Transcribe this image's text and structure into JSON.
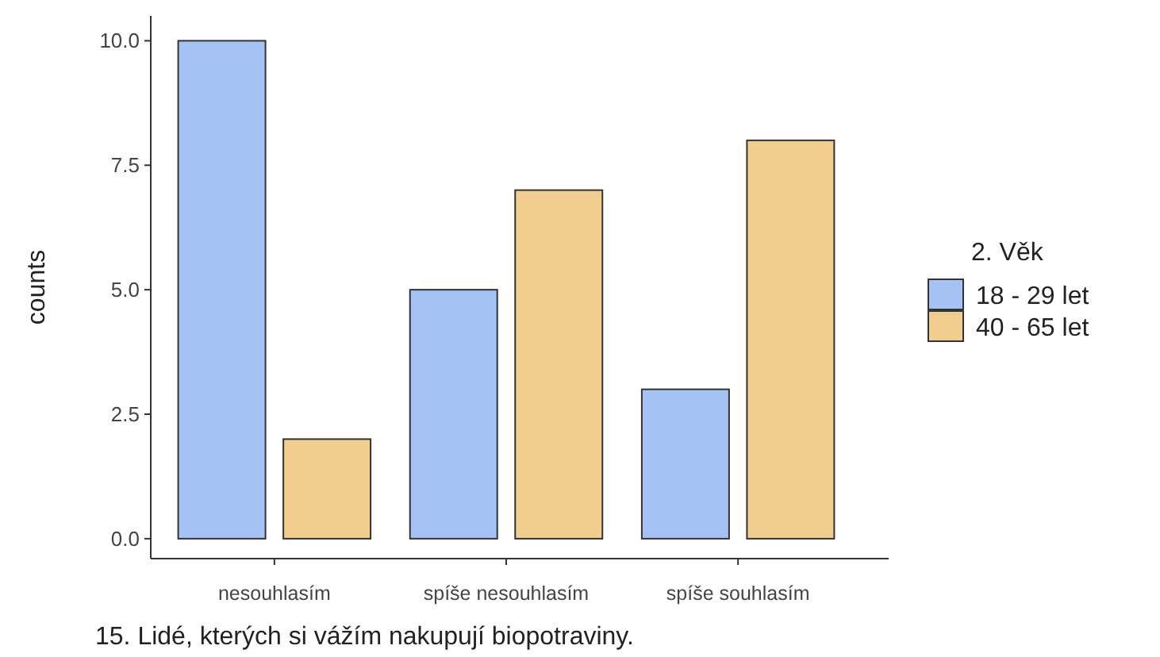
{
  "chart_data": {
    "type": "bar",
    "xlabel": "15.  Lidé, kterých si vážím nakupují biopotraviny.",
    "ylabel": "counts",
    "legend_title": "2. Věk",
    "categories": [
      "nesouhlasím",
      "spíše nesouhlasím",
      "spíše souhlasím"
    ],
    "series": [
      {
        "name": "18 - 29 let",
        "color": "#a4c2f4",
        "values": [
          10,
          5,
          3
        ]
      },
      {
        "name": "40 - 65 let",
        "color": "#f1cd8e",
        "values": [
          2,
          7,
          8
        ]
      }
    ],
    "ylim": [
      -0.4,
      10.5
    ],
    "yticks": [
      {
        "value": 0,
        "label": "0.0"
      },
      {
        "value": 2.5,
        "label": "2.5"
      },
      {
        "value": 5,
        "label": "5.0"
      },
      {
        "value": 7.5,
        "label": "7.5"
      },
      {
        "value": 10,
        "label": "10.0"
      }
    ],
    "grid": false,
    "legend": "right"
  }
}
